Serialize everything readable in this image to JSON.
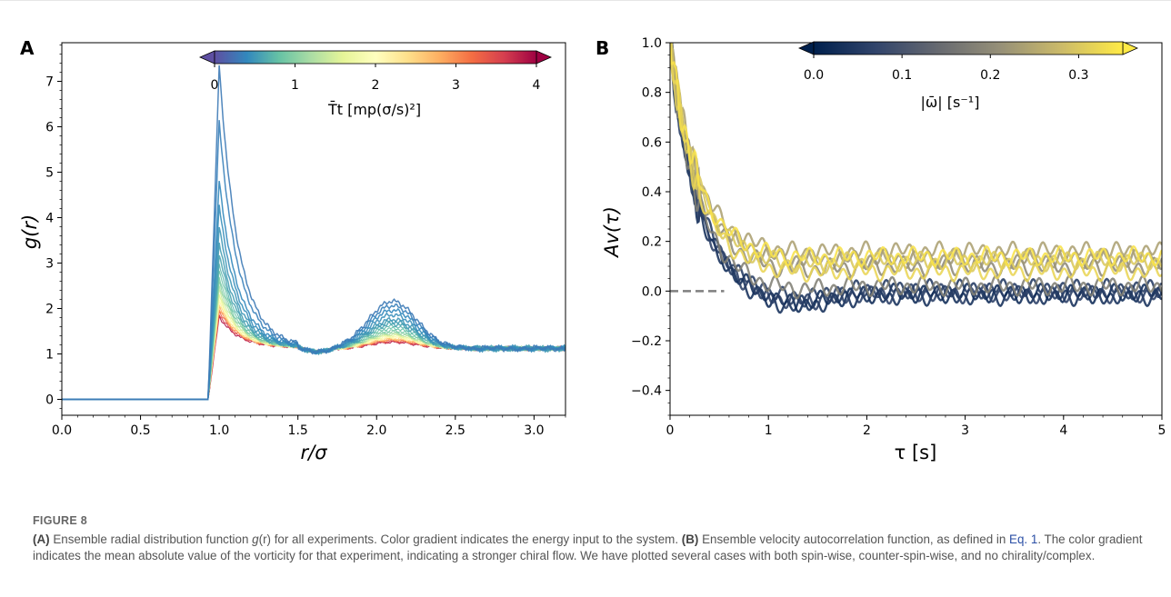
{
  "figure": {
    "label": "FIGURE 8",
    "caption": {
      "panel_a_tag": "(A)",
      "a_text_1": " Ensemble radial distribution function ",
      "a_symbol": "g",
      "a_text_2": "(r) for all experiments. Color gradient indicates the energy input to the system. ",
      "panel_b_tag": "(B)",
      "b_text_1": " Ensemble velocity autocorrelation function, as defined in ",
      "eq_link": "Eq. 1",
      "b_text_2": ". The color gradient indicates the mean absolute value of the vorticity for that experiment, indicating a stronger chiral flow. We have plotted several cases with both spin-wise, counter-spin-wise, and no chirality/complex."
    }
  },
  "chart_data": [
    {
      "panel": "A",
      "type": "line",
      "xlabel": "r/σ",
      "ylabel": "g(r)",
      "xlim": [
        0.0,
        3.2
      ],
      "ylim": [
        -0.35,
        7.85
      ],
      "xticks": [
        "0.0",
        "0.5",
        "1.0",
        "1.5",
        "2.0",
        "2.5",
        "3.0"
      ],
      "yticks": [
        "0",
        "1",
        "2",
        "3",
        "4",
        "5",
        "6",
        "7"
      ],
      "colorbar": {
        "label": "T̄t [mp(σ/s)²]",
        "min": 0,
        "max": 4,
        "ticks": [
          "0",
          "1",
          "2",
          "3",
          "4"
        ],
        "colormap": "Spectral_r",
        "colors": [
          "#5e4fa2",
          "#3288bd",
          "#66c2a5",
          "#abdda4",
          "#e6f598",
          "#ffffbf",
          "#fee08b",
          "#fdae61",
          "#f46d43",
          "#d53e4f",
          "#9e0142"
        ]
      },
      "series": [
        {
          "color_value": 0.3,
          "peak": 7.35,
          "second_peak": 2.15
        },
        {
          "color_value": 0.35,
          "peak": 6.1,
          "second_peak": 2.05
        },
        {
          "color_value": 0.4,
          "peak": 4.8,
          "second_peak": 1.95
        },
        {
          "color_value": 0.45,
          "peak": 4.25,
          "second_peak": 1.85
        },
        {
          "color_value": 0.5,
          "peak": 3.8,
          "second_peak": 1.75
        },
        {
          "color_value": 0.55,
          "peak": 3.45,
          "second_peak": 1.7
        },
        {
          "color_value": 0.6,
          "peak": 3.2,
          "second_peak": 1.65
        },
        {
          "color_value": 0.7,
          "peak": 3.0,
          "second_peak": 1.6
        },
        {
          "color_value": 0.8,
          "peak": 2.85,
          "second_peak": 1.55
        },
        {
          "color_value": 0.9,
          "peak": 2.7,
          "second_peak": 1.5
        },
        {
          "color_value": 1.0,
          "peak": 2.6,
          "second_peak": 1.47
        },
        {
          "color_value": 1.2,
          "peak": 2.5,
          "second_peak": 1.44
        },
        {
          "color_value": 1.4,
          "peak": 2.4,
          "second_peak": 1.42
        },
        {
          "color_value": 1.6,
          "peak": 2.3,
          "second_peak": 1.4
        },
        {
          "color_value": 1.8,
          "peak": 2.25,
          "second_peak": 1.38
        },
        {
          "color_value": 2.0,
          "peak": 2.2,
          "second_peak": 1.36
        },
        {
          "color_value": 2.2,
          "peak": 2.15,
          "second_peak": 1.35
        },
        {
          "color_value": 2.5,
          "peak": 2.1,
          "second_peak": 1.33
        },
        {
          "color_value": 2.8,
          "peak": 2.05,
          "second_peak": 1.31
        },
        {
          "color_value": 3.0,
          "peak": 2.0,
          "second_peak": 1.3
        },
        {
          "color_value": 3.3,
          "peak": 1.95,
          "second_peak": 1.28
        },
        {
          "color_value": 3.6,
          "peak": 1.88,
          "second_peak": 1.26
        },
        {
          "color_value": 3.9,
          "peak": 1.82,
          "second_peak": 1.25
        }
      ]
    },
    {
      "panel": "B",
      "type": "line",
      "xlabel": "τ [s]",
      "ylabel": "Av(τ)",
      "xlim": [
        0,
        5
      ],
      "ylim": [
        -0.5,
        1.0
      ],
      "xticks": [
        "0",
        "1",
        "2",
        "3",
        "4",
        "5"
      ],
      "yticks": [
        "−0.4",
        "−0.2",
        "0.0",
        "0.2",
        "0.4",
        "0.6",
        "0.8",
        "1.0"
      ],
      "colorbar": {
        "label": "|ω̄| [s⁻¹]",
        "min": 0.0,
        "max": 0.35,
        "ticks": [
          "0.0",
          "0.1",
          "0.2",
          "0.3"
        ],
        "colormap": "cividis",
        "colors": [
          "#00204d",
          "#31446b",
          "#666970",
          "#958f78",
          "#cbba69",
          "#ffea46"
        ]
      },
      "reference_line": {
        "y": 0.0,
        "x_end": 0.55,
        "style": "dashed",
        "color": "#7f7f7f"
      },
      "series": [
        {
          "color_value": 0.02,
          "plateau": -0.01,
          "dip": -0.06
        },
        {
          "color_value": 0.03,
          "plateau": -0.02,
          "dip": -0.07
        },
        {
          "color_value": 0.05,
          "plateau": 0.01,
          "dip": -0.04
        },
        {
          "color_value": 0.06,
          "plateau": -0.01,
          "dip": -0.05
        },
        {
          "color_value": 0.18,
          "plateau": 0.02,
          "dip": 0.0
        },
        {
          "color_value": 0.2,
          "plateau": 0.1,
          "dip": 0.08
        },
        {
          "color_value": 0.22,
          "plateau": 0.13,
          "dip": 0.12
        },
        {
          "color_value": 0.24,
          "plateau": 0.16,
          "dip": 0.15
        },
        {
          "color_value": 0.3,
          "plateau": 0.12,
          "dip": 0.1
        },
        {
          "color_value": 0.32,
          "plateau": 0.08,
          "dip": 0.07
        },
        {
          "color_value": 0.34,
          "plateau": 0.14,
          "dip": 0.13
        }
      ]
    }
  ],
  "panel_labels": {
    "a": "A",
    "b": "B"
  }
}
